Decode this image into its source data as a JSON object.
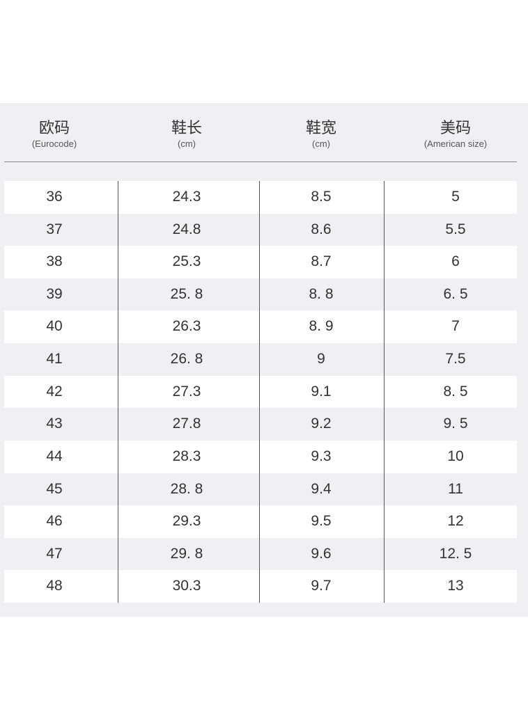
{
  "table": {
    "header": [
      {
        "title": "欧码",
        "subtitle": "(Eurocode)"
      },
      {
        "title": "鞋长",
        "subtitle": "(cm)"
      },
      {
        "title": "鞋宽",
        "subtitle": "(cm)"
      },
      {
        "title": "美码",
        "subtitle": "(American size)"
      }
    ],
    "rows": [
      [
        "36",
        "24.3",
        "8.5",
        "5"
      ],
      [
        "37",
        "24.8",
        "8.6",
        "5.5"
      ],
      [
        "38",
        "25.3",
        "8.7",
        "6"
      ],
      [
        "39",
        "25. 8",
        "8. 8",
        "6. 5"
      ],
      [
        "40",
        "26.3",
        "8. 9",
        "7"
      ],
      [
        "41",
        "26. 8",
        "9",
        "7.5"
      ],
      [
        "42",
        "27.3",
        "9.1",
        "8. 5"
      ],
      [
        "43",
        "27.8",
        "9.2",
        "9. 5"
      ],
      [
        "44",
        "28.3",
        "9.3",
        "10"
      ],
      [
        "45",
        "28. 8",
        "9.4",
        "11"
      ],
      [
        "46",
        "29.3",
        "9.5",
        "12"
      ],
      [
        "47",
        "29. 8",
        "9.6",
        "12. 5"
      ],
      [
        "48",
        "30.3",
        "9.7",
        "13"
      ]
    ]
  }
}
